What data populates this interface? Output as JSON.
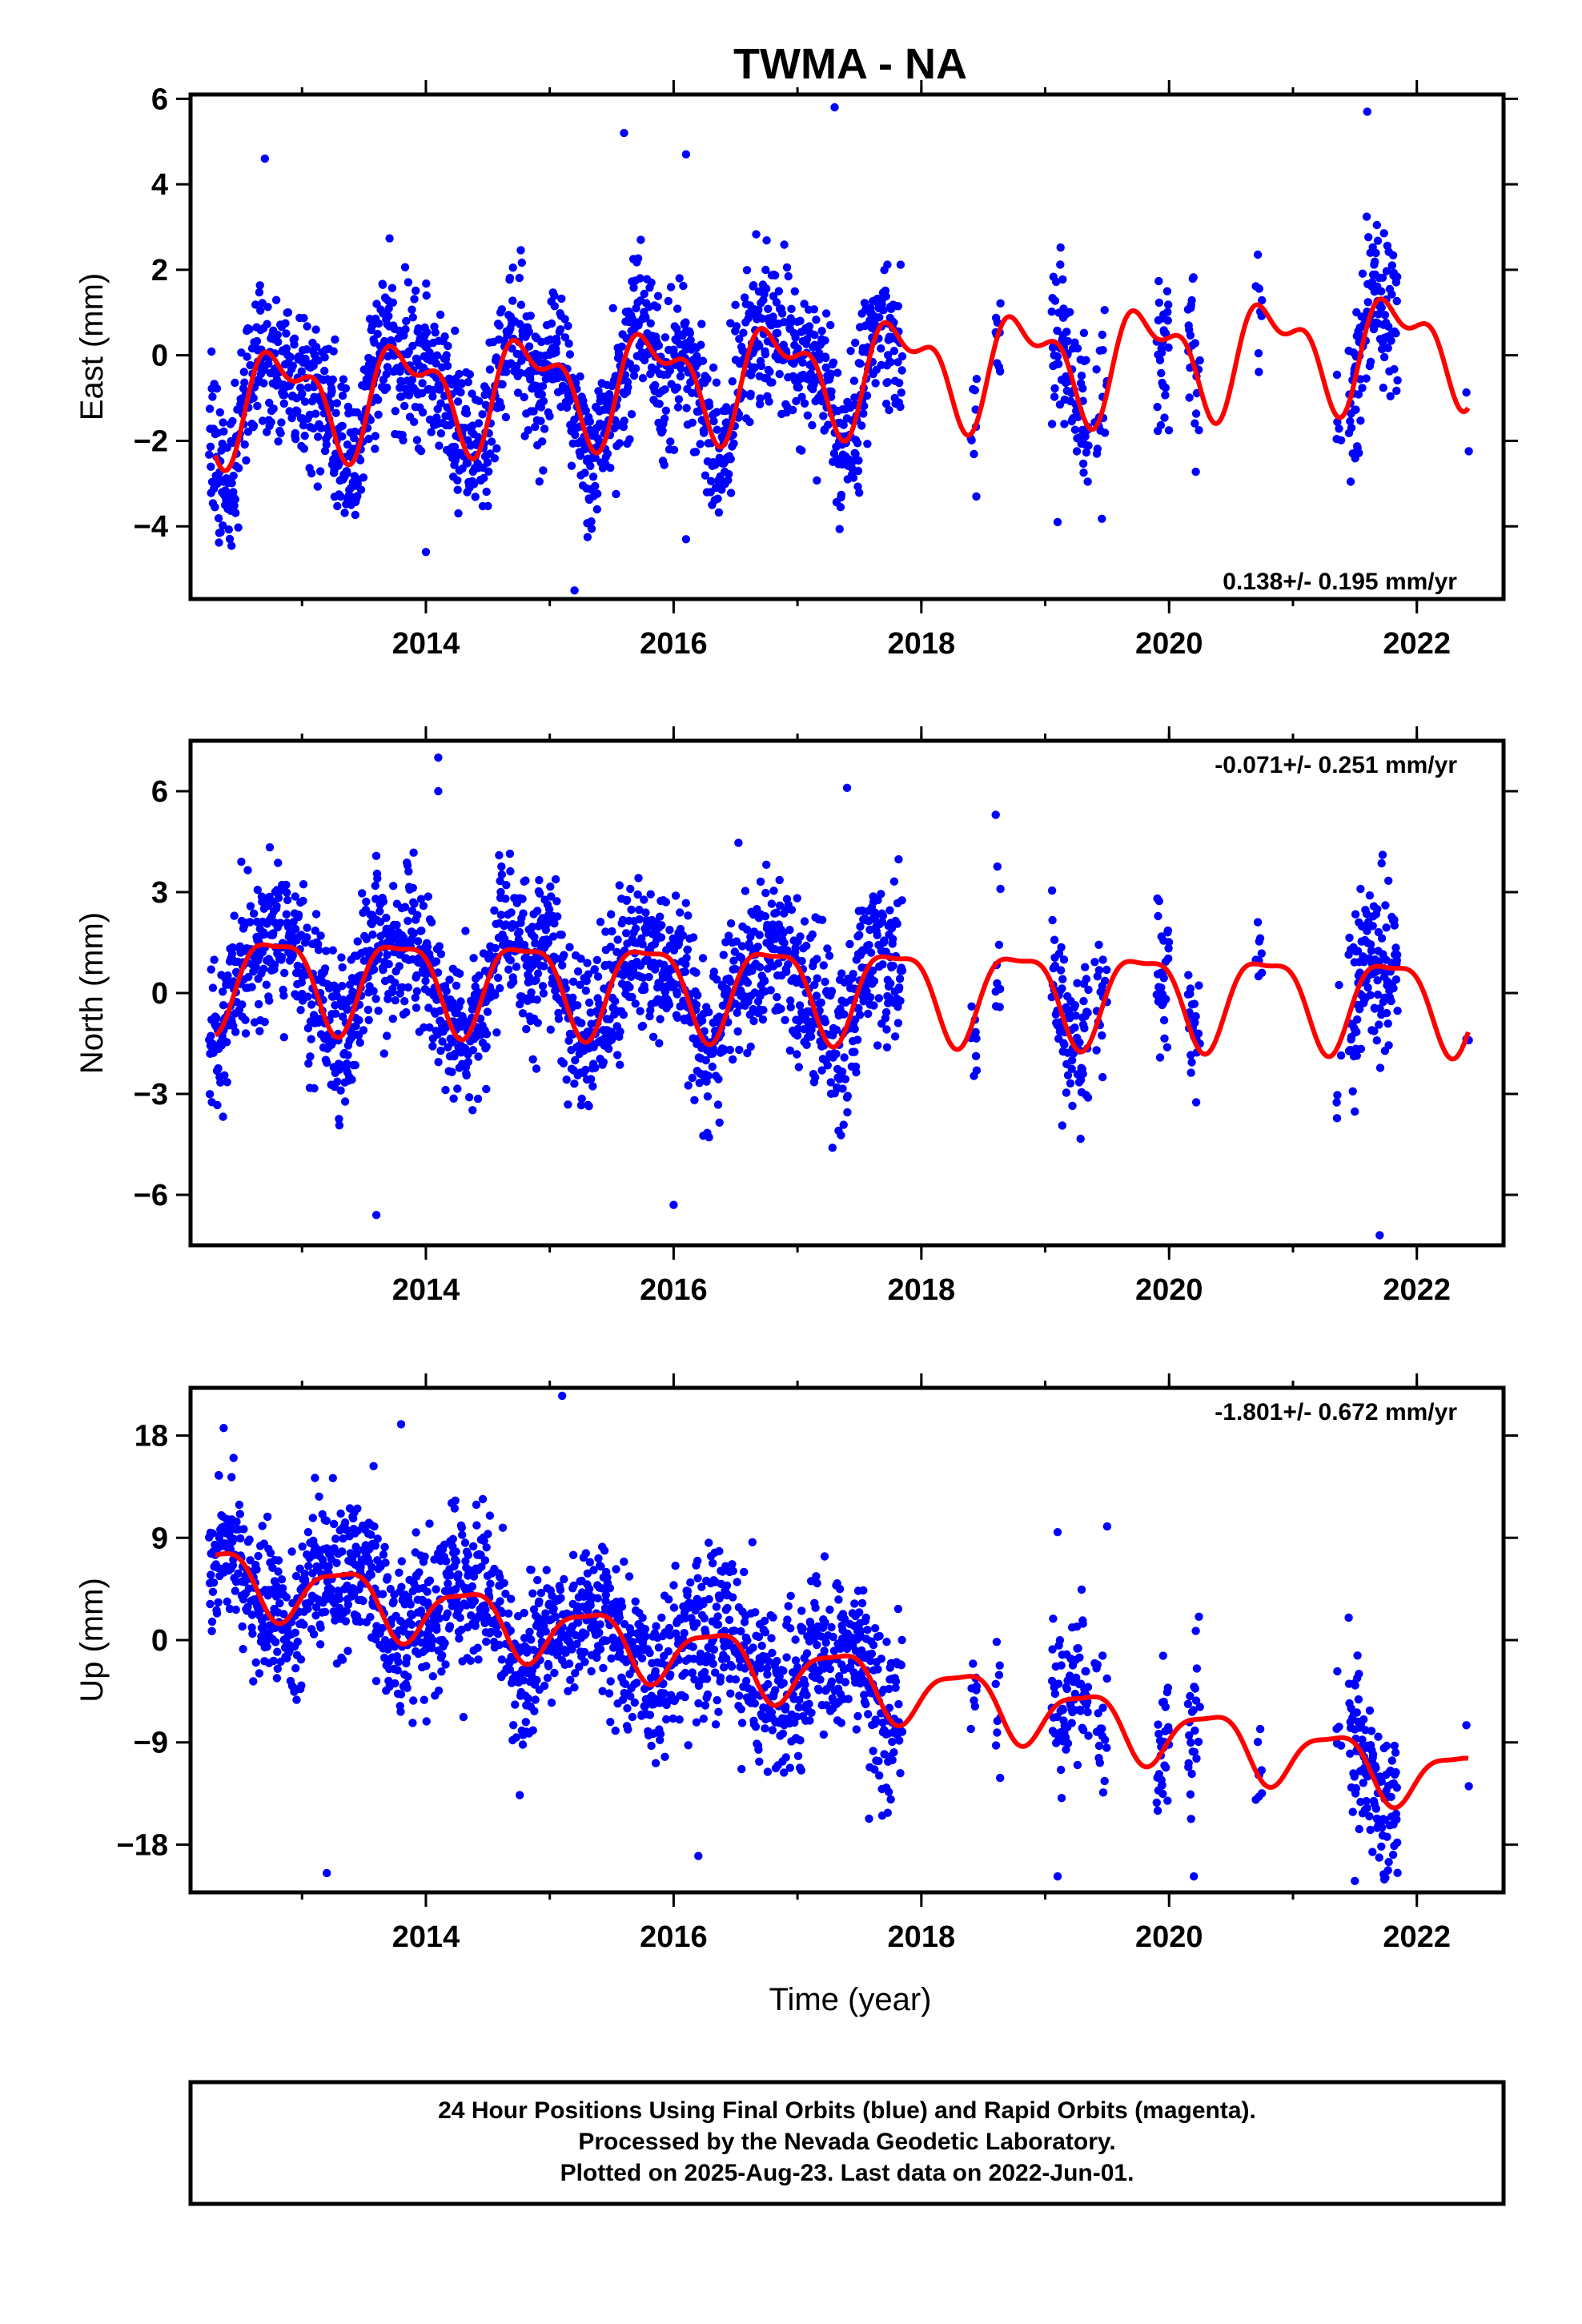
{
  "title": "TWMA - NA",
  "colors": {
    "final_orbits": "#0000ff",
    "model_fit": "#ff0000",
    "frame": "#000000"
  },
  "chart_data": [
    {
      "type": "scatter",
      "component": "east",
      "ylabel": "East (mm)",
      "xlim": [
        2012.1,
        2022.7
      ],
      "ylim": [
        -5.7,
        6.1
      ],
      "xticks": [
        2014,
        2016,
        2018,
        2020,
        2022
      ],
      "xtick_labels": [
        "2014",
        "2016",
        "2018",
        "2020",
        "2022"
      ],
      "yticks": [
        -4,
        -2,
        0,
        2,
        4,
        6
      ],
      "ytick_labels": [
        "−4",
        "−2",
        "0",
        "2",
        "4",
        "6"
      ],
      "rate_text": "0.138+/- 0.195 mm/yr",
      "rate_placement": "bottom-right",
      "model": {
        "offset": -0.45,
        "trend_per_year": 0.138,
        "epoch": 2017.0,
        "annual_cos": 0.6,
        "annual_sin": -0.9,
        "semiannual_cos": -0.15,
        "semiannual_sin": 0.55
      },
      "scatter_sd": 1.15,
      "outliers": [
        [
          2012.7,
          4.6
        ],
        [
          2015.6,
          5.2
        ],
        [
          2016.1,
          4.7
        ],
        [
          2017.3,
          5.8
        ],
        [
          2021.6,
          5.7
        ],
        [
          2015.2,
          -5.5
        ],
        [
          2014.0,
          -4.6
        ],
        [
          2016.1,
          -4.3
        ],
        [
          2019.1,
          -3.9
        ]
      ]
    },
    {
      "type": "scatter",
      "component": "north",
      "ylabel": "North (mm)",
      "xlim": [
        2012.1,
        2022.7
      ],
      "ylim": [
        -7.5,
        7.5
      ],
      "xticks": [
        2014,
        2016,
        2018,
        2020,
        2022
      ],
      "xtick_labels": [
        "2014",
        "2016",
        "2018",
        "2020",
        "2022"
      ],
      "yticks": [
        -6,
        -3,
        0,
        3,
        6
      ],
      "ytick_labels": [
        "−6",
        "−3",
        "0",
        "3",
        "6"
      ],
      "rate_text": "-0.071+/- 0.251 mm/yr",
      "rate_placement": "top-right",
      "model": {
        "offset": 0.15,
        "trend_per_year": -0.071,
        "epoch": 2017.0,
        "annual_cos": 0.3,
        "annual_sin": -1.3,
        "semiannual_cos": 0.35,
        "semiannual_sin": 0.2
      },
      "scatter_sd": 1.5,
      "outliers": [
        [
          2014.1,
          7.0
        ],
        [
          2014.1,
          6.0
        ],
        [
          2017.4,
          6.1
        ],
        [
          2013.6,
          -6.6
        ],
        [
          2016.0,
          -6.3
        ],
        [
          2021.7,
          -7.2
        ],
        [
          2018.6,
          5.3
        ]
      ]
    },
    {
      "type": "scatter",
      "component": "up",
      "ylabel": "Up (mm)",
      "xlim": [
        2012.1,
        2022.7
      ],
      "ylim": [
        -22.2,
        22.2
      ],
      "xticks": [
        2014,
        2016,
        2018,
        2020,
        2022
      ],
      "xtick_labels": [
        "2014",
        "2016",
        "2018",
        "2020",
        "2022"
      ],
      "yticks": [
        -18,
        -9,
        0,
        9,
        18
      ],
      "ytick_labels": [
        "−18",
        "−9",
        "0",
        "9",
        "18"
      ],
      "rate_text": "-1.801+/- 0.672 mm/yr",
      "rate_placement": "top-right",
      "model": {
        "offset": -2.8,
        "trend_per_year": -1.801,
        "epoch": 2017.0,
        "annual_cos": -1.2,
        "annual_sin": 2.3,
        "semiannual_cos": 0.6,
        "semiannual_sin": 0.4
      },
      "scatter_sd": 4.5,
      "outliers": [
        [
          2015.1,
          21.5
        ],
        [
          2013.8,
          19.0
        ],
        [
          2013.2,
          -20.5
        ],
        [
          2016.2,
          -19.0
        ],
        [
          2019.1,
          -20.8
        ],
        [
          2020.2,
          -20.8
        ],
        [
          2021.5,
          -21.2
        ],
        [
          2019.5,
          10.0
        ],
        [
          2019.1,
          9.5
        ]
      ]
    }
  ],
  "x_axis_label": "Time (year)",
  "footer": {
    "line1": "24 Hour Positions Using Final Orbits (blue) and Rapid Orbits (magenta).",
    "line2": "Processed by the Nevada Geodetic Laboratory.",
    "line3": "Plotted on 2025-Aug-23. Last data on 2022-Jun-01."
  }
}
